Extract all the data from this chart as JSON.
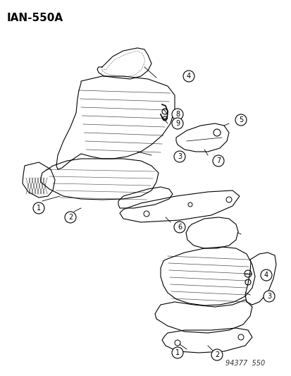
{
  "title": "IAN-550A",
  "part_number": "94377  550",
  "bg_color": "#ffffff",
  "line_color": "#000000",
  "callout_numbers_seat1": [
    1,
    2,
    3,
    4,
    5,
    6,
    7,
    8,
    9
  ],
  "callout_numbers_seat2": [
    1,
    2,
    3,
    4
  ]
}
